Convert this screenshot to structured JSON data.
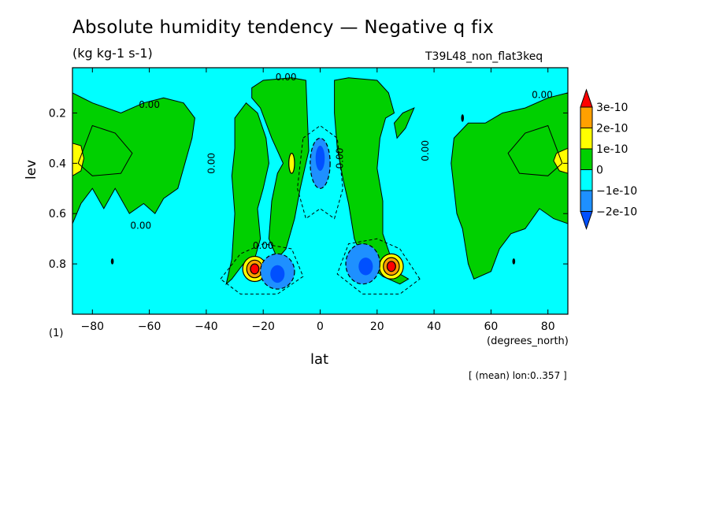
{
  "chart_data": {
    "type": "contour",
    "title": "Absolute humidity tendency — Negative q fix",
    "units": "(kg kg-1 s-1)",
    "experiment": "T39L48_non_flat3keq",
    "xlabel": "lat",
    "xunits": "(degrees_north)",
    "ylabel": "lev",
    "yunits": "(1)",
    "footer": "[ (mean) lon:0..357 ]",
    "xlim": [
      -87,
      87
    ],
    "ylim": [
      0.02,
      1.0
    ],
    "x_ticks": [
      -80,
      -60,
      -40,
      -20,
      0,
      20,
      40,
      60,
      80
    ],
    "x_tick_labels": [
      "−80",
      "−60",
      "−40",
      "−20",
      "0",
      "20",
      "40",
      "60",
      "80"
    ],
    "y_ticks": [
      0.2,
      0.4,
      0.6,
      0.8
    ],
    "y_tick_labels": [
      "0.2",
      "0.4",
      "0.6",
      "0.8"
    ],
    "colorbar": {
      "levels": [
        {
          "label": "3e-10",
          "value": 3e-10
        },
        {
          "label": "2e-10",
          "value": 2e-10
        },
        {
          "label": "1e-10",
          "value": 1e-10
        },
        {
          "label": "0",
          "value": 0
        },
        {
          "label": "−1e-10",
          "value": -1e-10
        },
        {
          "label": "−2e-10",
          "value": -2e-10
        }
      ],
      "colors": [
        "#ff0000",
        "#ffa000",
        "#ffff00",
        "#00d000",
        "#00ffff",
        "#1e90ff",
        "#0050ff"
      ]
    },
    "contour_labels": [
      "0.00",
      "0.00",
      "0.00",
      "0.00",
      "0.00",
      "0.00",
      "0.00",
      "0.00"
    ],
    "features": [
      {
        "name": "south-extratropics-positive",
        "lat_range": [
          -87,
          -43
        ],
        "lev_range": [
          0.1,
          0.64
        ],
        "value": 1e-10
      },
      {
        "name": "north-extratropics-positive",
        "lat_range": [
          45,
          87
        ],
        "lev_range": [
          0.12,
          0.85
        ],
        "value": 1e-10
      },
      {
        "name": "south-subtropical-positive-column",
        "lat_range": [
          -32,
          -8
        ],
        "lev_range": [
          0.07,
          0.88
        ],
        "value": 1e-10
      },
      {
        "name": "north-subtropical-positive-column",
        "lat_range": [
          6,
          32
        ],
        "lev_range": [
          0.07,
          0.88
        ],
        "value": 1e-10
      },
      {
        "name": "south-low-level-maximum",
        "lat": -23,
        "lev": 0.82,
        "value": 3e-10
      },
      {
        "name": "north-low-level-maximum",
        "lat": 25,
        "lev": 0.82,
        "value": 3e-10
      },
      {
        "name": "south-low-level-minimum",
        "lat": -15,
        "lev": 0.82,
        "value": -2e-10
      },
      {
        "name": "north-low-level-minimum",
        "lat": 15,
        "lev": 0.8,
        "value": -2e-10
      },
      {
        "name": "equatorial-upper-minimum",
        "lat": 0,
        "lev": 0.42,
        "value": -2e-10
      }
    ]
  }
}
